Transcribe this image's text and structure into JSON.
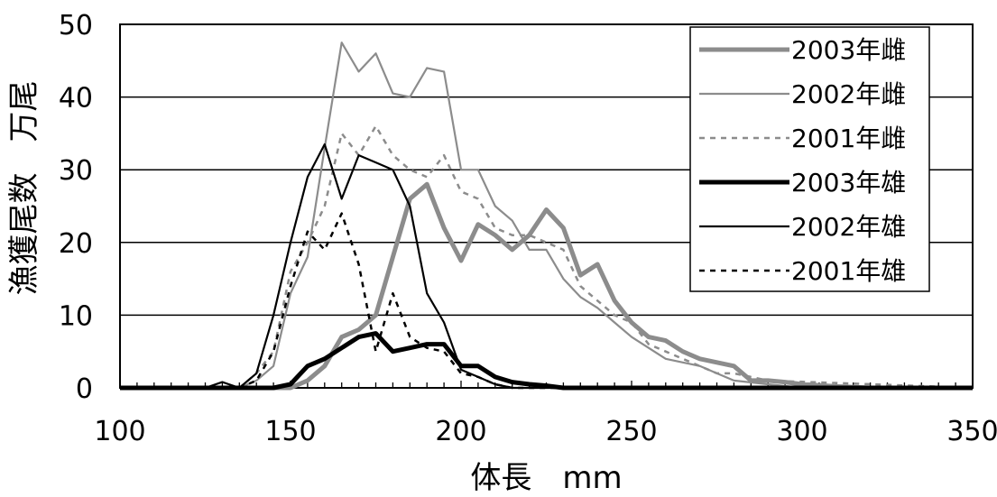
{
  "chart_data": {
    "type": "line",
    "xlabel": "体長　mm",
    "ylabel": "漁獲尾数　万尾",
    "xlim": [
      100,
      350
    ],
    "ylim": [
      0,
      50
    ],
    "xticks": [
      100,
      150,
      200,
      250,
      300,
      350
    ],
    "yticks": [
      0,
      10,
      20,
      30,
      40,
      50
    ],
    "grid": "horizontal",
    "legend_position": "top-right",
    "series": [
      {
        "name": "2003年雌",
        "color": "#8c8c8c",
        "style": "thick-solid",
        "x": [
          100,
          130,
          135,
          140,
          145,
          150,
          155,
          160,
          165,
          170,
          175,
          180,
          185,
          190,
          195,
          200,
          205,
          210,
          215,
          220,
          225,
          230,
          235,
          240,
          245,
          250,
          255,
          260,
          265,
          270,
          275,
          280,
          285,
          290,
          295,
          300,
          310,
          320,
          350
        ],
        "y": [
          0,
          0,
          0,
          0,
          0,
          0,
          1,
          3,
          7,
          8,
          10,
          18,
          26,
          28,
          22,
          17.5,
          22.5,
          21,
          19,
          21,
          24.5,
          22,
          15.5,
          17,
          12,
          9,
          7,
          6.5,
          5,
          4,
          3.5,
          3,
          1,
          1,
          0.8,
          0.5,
          0.2,
          0,
          0
        ]
      },
      {
        "name": "2002年雌",
        "color": "#8c8c8c",
        "style": "thin-solid",
        "x": [
          100,
          135,
          140,
          145,
          150,
          155,
          160,
          165,
          170,
          175,
          180,
          185,
          190,
          195,
          200,
          205,
          210,
          215,
          220,
          225,
          230,
          235,
          240,
          245,
          250,
          255,
          260,
          265,
          270,
          275,
          280,
          290,
          300,
          350
        ],
        "y": [
          0,
          0,
          1,
          3,
          13,
          18,
          33,
          47.5,
          43.5,
          46,
          40.5,
          40,
          44,
          43.5,
          30,
          30,
          25,
          23,
          19,
          19,
          15,
          12.5,
          11,
          9,
          7,
          5.5,
          4,
          3.5,
          3,
          2,
          1,
          0.5,
          0,
          0
        ]
      },
      {
        "name": "2001年雌",
        "color": "#8c8c8c",
        "style": "dashed",
        "x": [
          100,
          135,
          140,
          145,
          150,
          155,
          160,
          165,
          170,
          175,
          180,
          185,
          190,
          195,
          200,
          205,
          210,
          215,
          220,
          225,
          230,
          235,
          240,
          245,
          250,
          255,
          260,
          265,
          270,
          275,
          280,
          290,
          350
        ],
        "y": [
          0,
          0,
          2,
          5,
          16,
          20,
          25,
          35,
          32,
          36,
          32,
          30,
          29,
          32,
          27,
          26,
          22,
          21,
          21,
          20,
          19,
          14,
          12,
          10,
          9,
          6,
          5,
          4,
          3,
          2,
          2,
          1,
          0
        ]
      },
      {
        "name": "2003年雄",
        "color": "#000000",
        "style": "thick-solid",
        "x": [
          100,
          145,
          150,
          155,
          160,
          165,
          170,
          175,
          180,
          185,
          190,
          195,
          200,
          205,
          210,
          215,
          220,
          225,
          230,
          350
        ],
        "y": [
          0,
          0,
          0.5,
          3,
          4,
          5.5,
          7,
          7.5,
          5,
          5.5,
          6,
          6,
          3,
          3,
          1.5,
          0.8,
          0.5,
          0.3,
          0,
          0
        ]
      },
      {
        "name": "2002年雄",
        "color": "#000000",
        "style": "thin-solid",
        "x": [
          100,
          125,
          130,
          135,
          140,
          145,
          150,
          155,
          160,
          165,
          170,
          175,
          180,
          185,
          190,
          195,
          200,
          205,
          210,
          215,
          220,
          350
        ],
        "y": [
          0,
          0,
          0.8,
          0,
          2,
          10,
          20,
          29,
          33.5,
          26,
          32,
          31,
          30,
          25,
          13,
          9,
          2.5,
          1.5,
          0.5,
          0,
          0,
          0
        ]
      },
      {
        "name": "2001年雄",
        "color": "#000000",
        "style": "dashed",
        "x": [
          100,
          135,
          140,
          145,
          150,
          155,
          160,
          165,
          170,
          175,
          180,
          185,
          190,
          195,
          200,
          205,
          210,
          215,
          350
        ],
        "y": [
          0,
          0,
          1,
          5,
          14,
          21.5,
          19,
          24,
          17,
          5,
          13,
          7,
          5.5,
          5,
          2,
          1.5,
          0.5,
          0,
          0
        ]
      }
    ]
  }
}
